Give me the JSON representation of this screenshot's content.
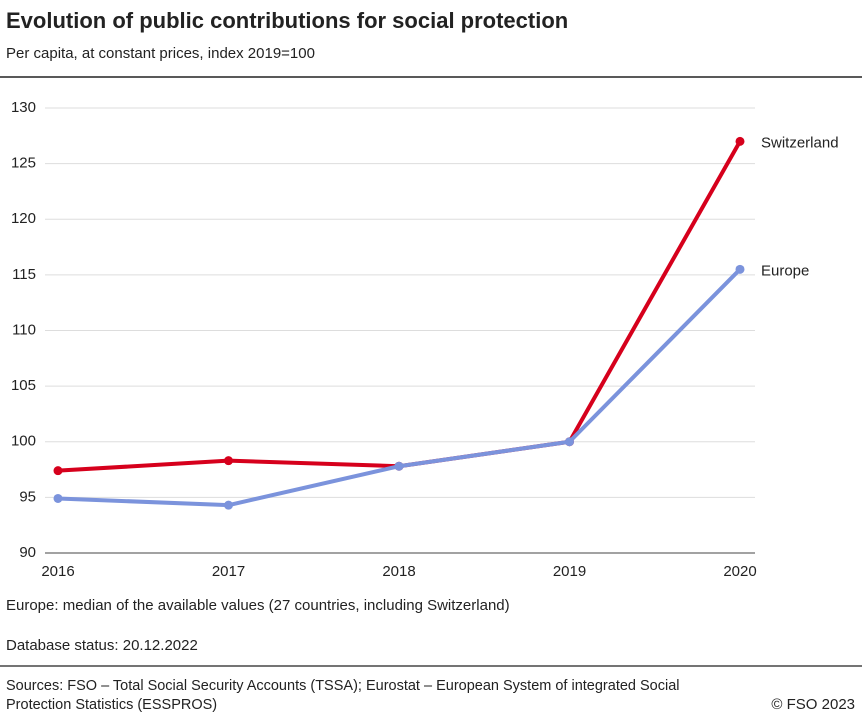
{
  "chart_data": {
    "type": "line",
    "title": "Evolution of public contributions for social protection",
    "subtitle": "Per capita, at constant prices, index 2019=100",
    "categories": [
      "2016",
      "2017",
      "2018",
      "2019",
      "2020"
    ],
    "series": [
      {
        "name": "Switzerland",
        "color": "#d6001c",
        "values": [
          97.4,
          98.3,
          97.8,
          100,
          127
        ]
      },
      {
        "name": "Europe",
        "color": "#7b93dc",
        "values": [
          94.9,
          94.3,
          97.8,
          100,
          115.5
        ]
      }
    ],
    "ylim": [
      90,
      130
    ],
    "yticks": [
      90,
      95,
      100,
      105,
      110,
      115,
      120,
      125,
      130
    ],
    "grid": true,
    "note": "Europe: median of the available values (27 countries, including Switzerland)",
    "database_status": "Database status: 20.12.2022",
    "source": "Sources: FSO – Total Social Security Accounts (TSSA); Eurostat – European System of integrated Social Protection Statistics (ESSPROS)",
    "copyright": "© FSO 2023"
  }
}
